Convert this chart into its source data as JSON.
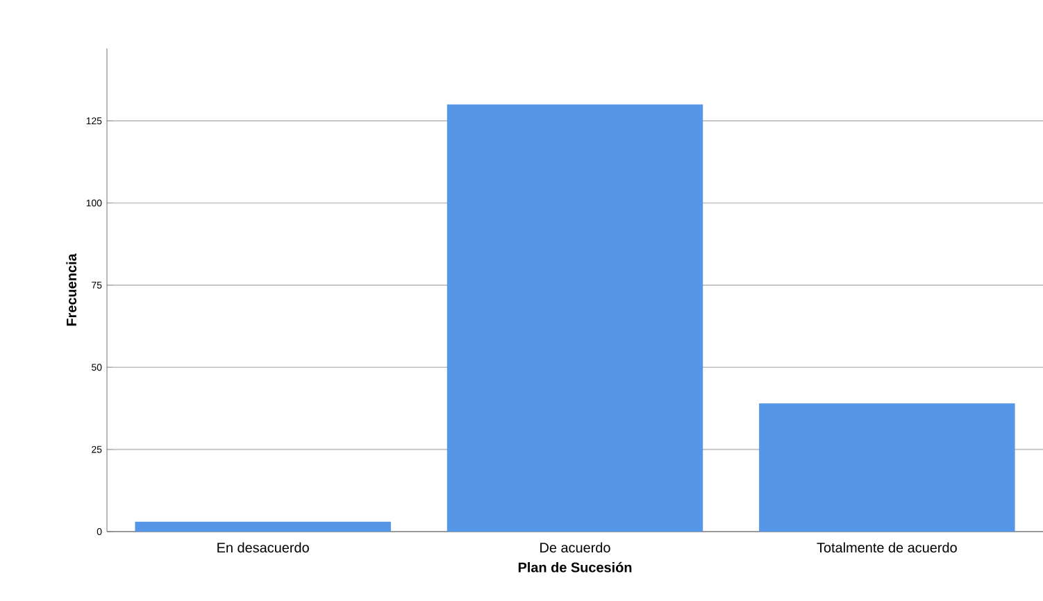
{
  "chart_data": {
    "type": "bar",
    "xlabel": "Plan de Sucesión",
    "ylabel": "Frecuencia",
    "categories": [
      "En desacuerdo",
      "De acuerdo",
      "Totalmente de acuerdo"
    ],
    "values": [
      3,
      130,
      39
    ],
    "color": "#5596e6",
    "ylim": [
      0,
      147
    ],
    "yticks": [
      0,
      25,
      50,
      75,
      100,
      125
    ],
    "grid": "y"
  }
}
